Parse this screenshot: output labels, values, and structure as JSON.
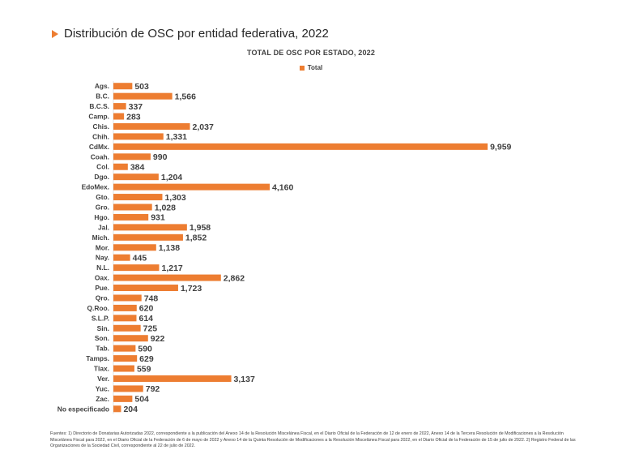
{
  "heading": "Distribución de OSC por entidad federativa, 2022",
  "footnote": "Fuentes: 1) Directorio de Donatarias Autorizadas 2022, correspondiente a la publicación del Anexo 14 de la Resolución Miscelánea Fiscal, en el Diario Oficial de la Federación de 12 de enero de 2022, Anexo 14 de la Tercera Resolución de Modificaciones a la Resolución Miscelánea Fiscal para 2022, en el Diario Oficial de la Federación de 6 de mayo de 2022 y Anexo 14 de la Quinta Resolución de Modificaciones a la Resolución Miscelánea Fiscal para 2022, en el Diario Oficial de la Federación de 15 de julio de 2022. 2) Registro Federal de las Organizaciones de la Sociedad Civil, correspondiente al 22 de julio de 2022.",
  "chart_data": {
    "type": "bar",
    "orientation": "horizontal",
    "title": "TOTAL DE OSC POR ESTADO, 2022",
    "legend_position": "top-center",
    "grid": false,
    "bar_color": "#ED7D31",
    "xlim": [
      0,
      10000
    ],
    "categories": [
      "Ags.",
      "B.C.",
      "B.C.S.",
      "Camp.",
      "Chis.",
      "Chih.",
      "CdMx.",
      "Coah.",
      "Col.",
      "Dgo.",
      "EdoMex.",
      "Gto.",
      "Gro.",
      "Hgo.",
      "Jal.",
      "Mich.",
      "Mor.",
      "Nay.",
      "N.L.",
      "Oax.",
      "Pue.",
      "Qro.",
      "Q.Roo.",
      "S.L.P.",
      "Sin.",
      "Son.",
      "Tab.",
      "Tamps.",
      "Tlax.",
      "Ver.",
      "Yuc.",
      "Zac.",
      "No especificado"
    ],
    "series": [
      {
        "name": "Total",
        "values": [
          503,
          1566,
          337,
          283,
          2037,
          1331,
          9959,
          990,
          384,
          1204,
          4160,
          1303,
          1028,
          931,
          1958,
          1852,
          1138,
          445,
          1217,
          2862,
          1723,
          748,
          620,
          614,
          725,
          922,
          590,
          629,
          559,
          3137,
          792,
          504,
          204
        ],
        "labels": [
          "503",
          "1,566",
          "337",
          "283",
          "2,037",
          "1,331",
          "9,959",
          "990",
          "384",
          "1,204",
          "4,160",
          "1,303",
          "1,028",
          "931",
          "1,958",
          "1,852",
          "1,138",
          "445",
          "1,217",
          "2,862",
          "1,723",
          "748",
          "620",
          "614",
          "725",
          "922",
          "590",
          "629",
          "559",
          "3,137",
          "792",
          "504",
          "204"
        ]
      }
    ]
  }
}
